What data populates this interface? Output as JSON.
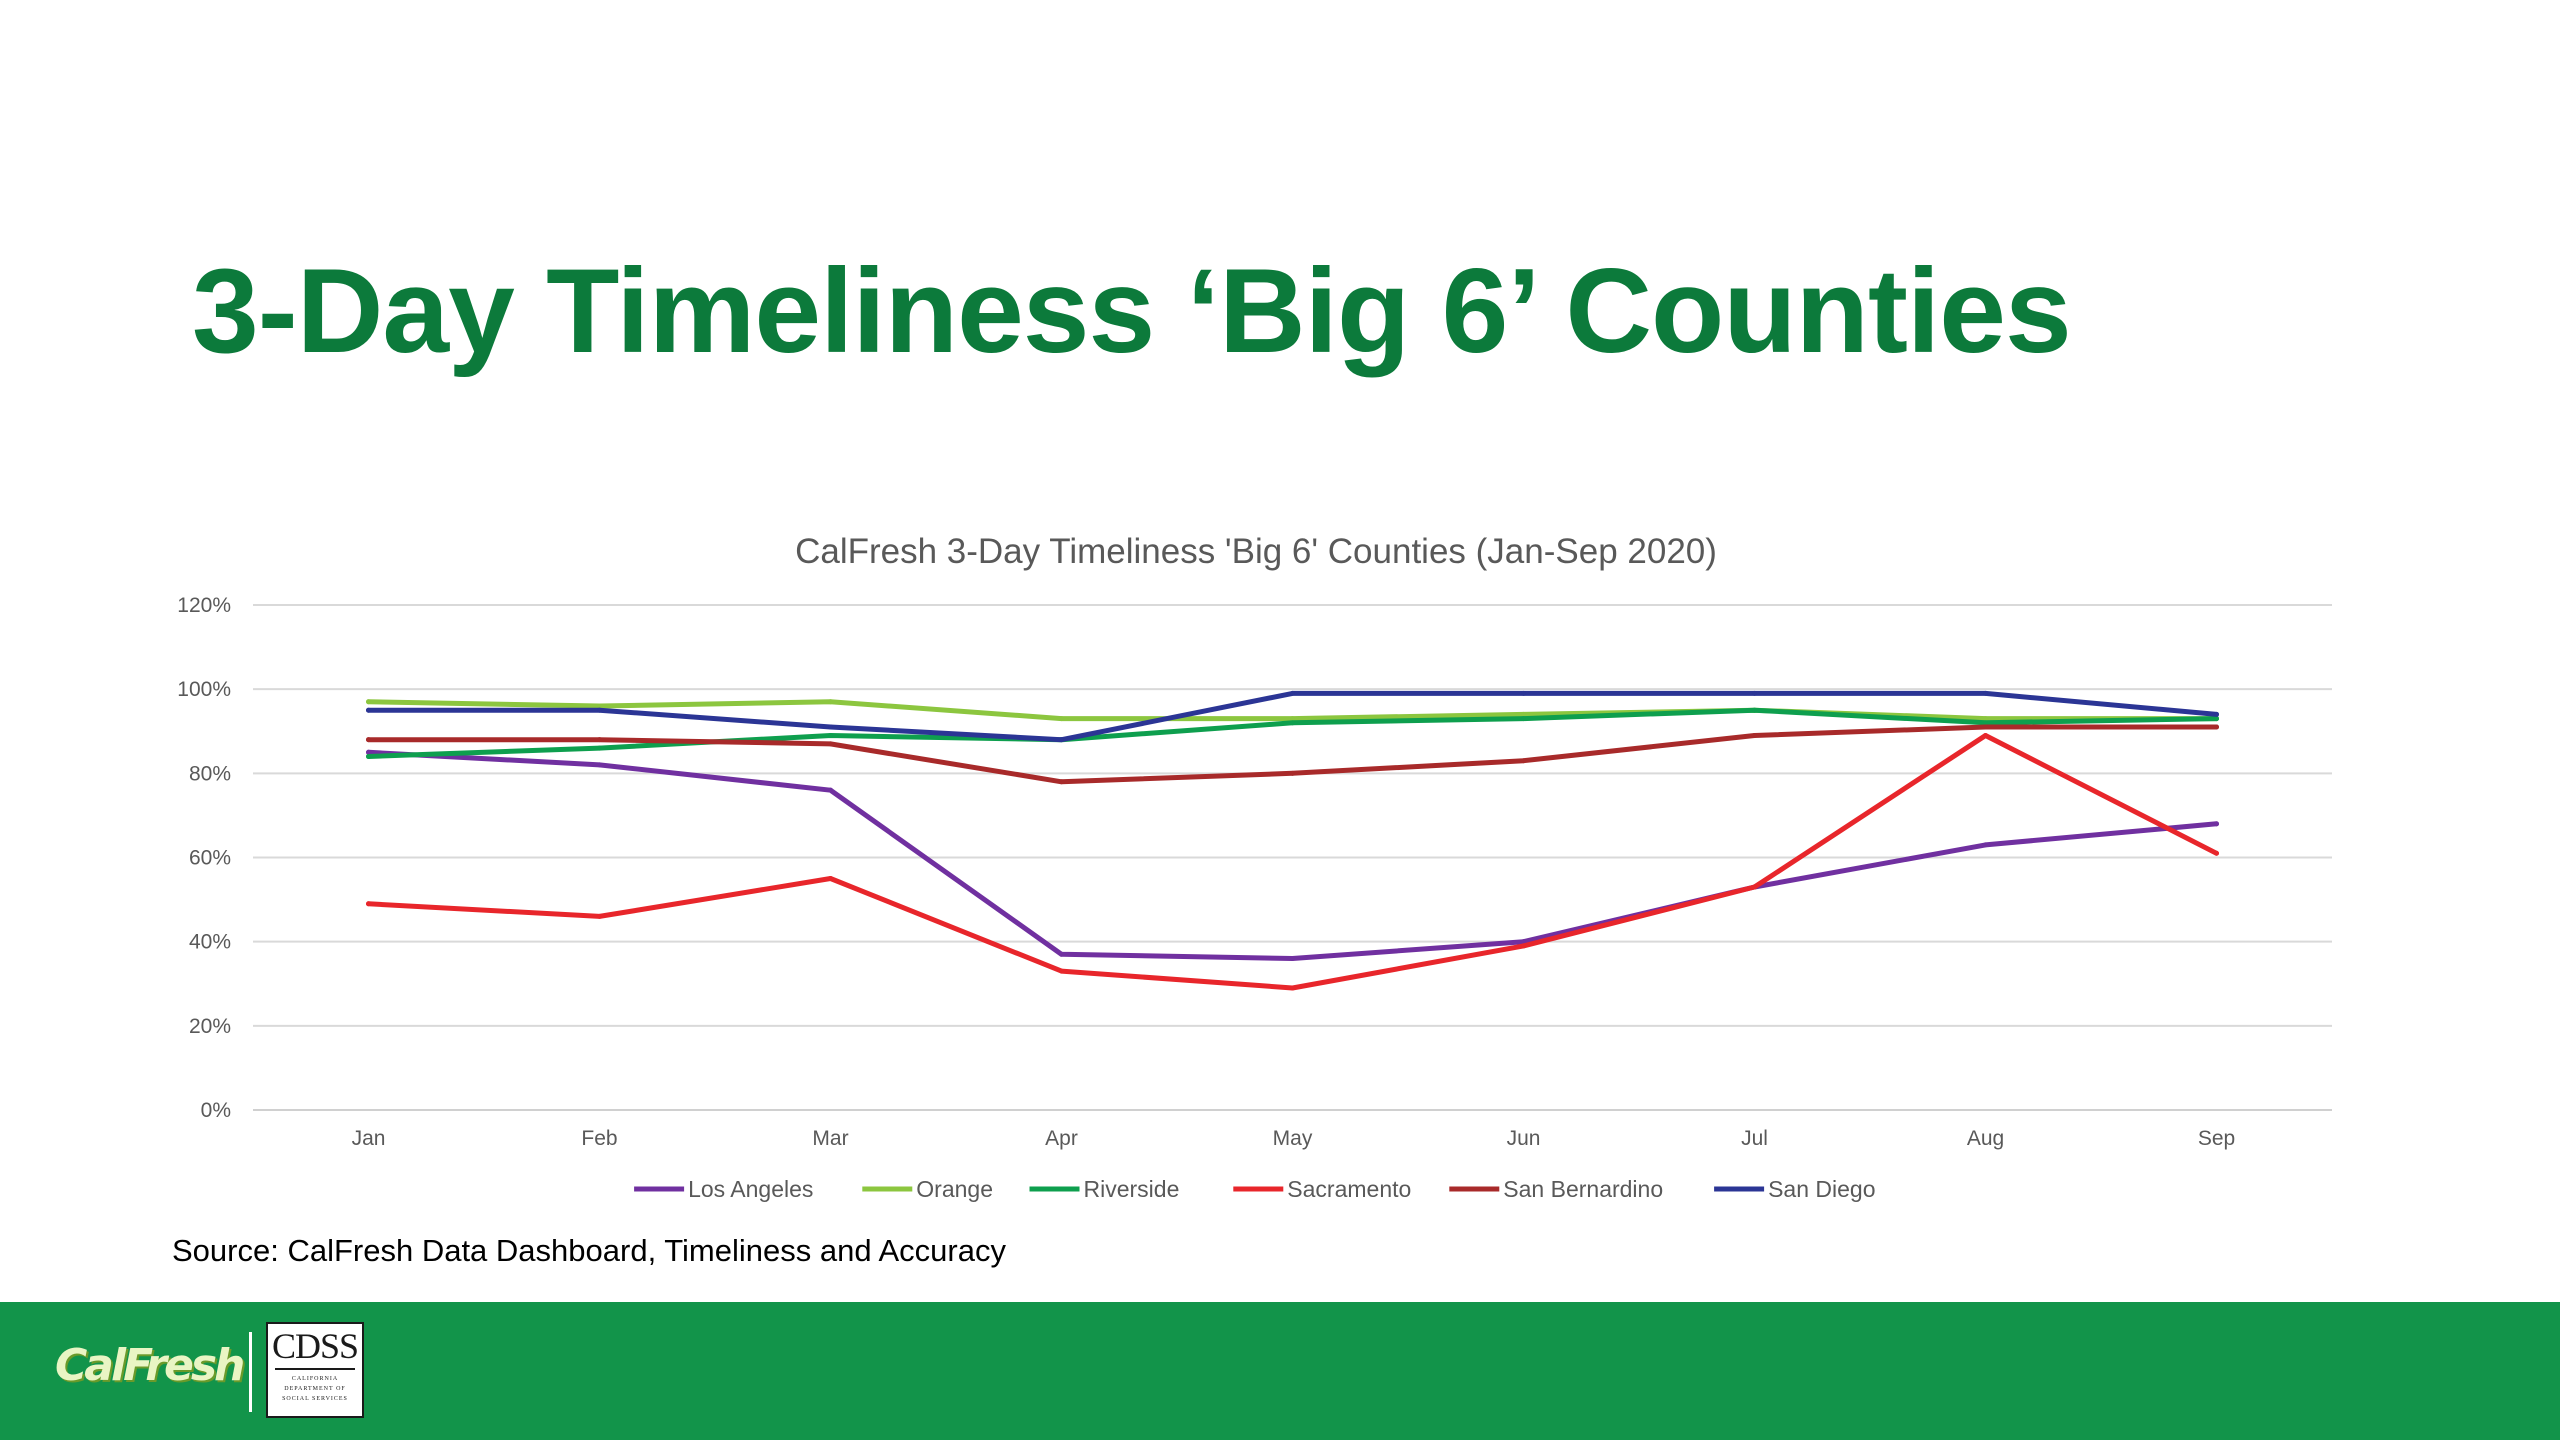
{
  "slide": {
    "title": "3-Day Timeliness ‘Big 6’ Counties",
    "source": "Source: CalFresh Data Dashboard, Timeliness and Accuracy"
  },
  "footer": {
    "calfresh_logo_text": "CalFresh",
    "cdss_logo_text": "CDSS",
    "cdss_logo_sub_1": "CALIFORNIA",
    "cdss_logo_sub_2": "DEPARTMENT OF",
    "cdss_logo_sub_3": "SOCIAL SERVICES",
    "bar_color": "#12944a"
  },
  "chart_data": {
    "type": "line",
    "title": "CalFresh 3-Day Timeliness 'Big 6' Counties (Jan-Sep 2020)",
    "xlabel": "",
    "ylabel": "",
    "categories": [
      "Jan",
      "Feb",
      "Mar",
      "Apr",
      "May",
      "Jun",
      "Jul",
      "Aug",
      "Sep"
    ],
    "y_ticks": [
      "0%",
      "20%",
      "40%",
      "60%",
      "80%",
      "100%",
      "120%"
    ],
    "ylim": [
      0,
      120
    ],
    "grid": "horizontal",
    "legend_position": "bottom",
    "series": [
      {
        "name": "Los Angeles",
        "color": "#7030a0",
        "values": [
          85,
          82,
          76,
          37,
          36,
          40,
          53,
          63,
          68
        ]
      },
      {
        "name": "Orange",
        "color": "#8cc63f",
        "values": [
          97,
          96,
          97,
          93,
          93,
          94,
          95,
          93,
          93
        ]
      },
      {
        "name": "Riverside",
        "color": "#0e9f4e",
        "values": [
          84,
          86,
          89,
          88,
          92,
          93,
          95,
          92,
          93
        ]
      },
      {
        "name": "Sacramento",
        "color": "#e8262b",
        "values": [
          49,
          46,
          55,
          33,
          29,
          39,
          53,
          89,
          61
        ]
      },
      {
        "name": "San Bernardino",
        "color": "#a82a2a",
        "values": [
          88,
          88,
          87,
          78,
          80,
          83,
          89,
          91,
          91
        ]
      },
      {
        "name": "San Diego",
        "color": "#2b3595",
        "values": [
          95,
          95,
          91,
          88,
          99,
          99,
          99,
          99,
          94
        ]
      }
    ]
  }
}
